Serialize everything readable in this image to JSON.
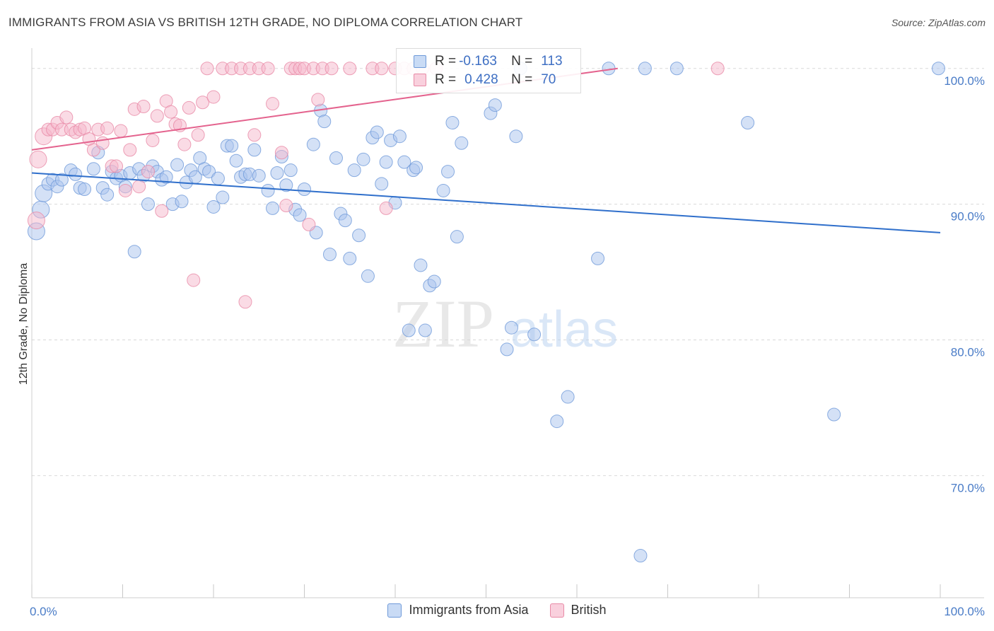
{
  "header": {
    "title": "IMMIGRANTS FROM ASIA VS BRITISH 12TH GRADE, NO DIPLOMA CORRELATION CHART",
    "source": "Source: ZipAtlas.com"
  },
  "watermark": {
    "zip": "ZIP",
    "atlas": "atlas"
  },
  "legend": {
    "r_label": "R =",
    "n_label": "N =",
    "rows": [
      {
        "series": "Immigrants from Asia",
        "r": "-0.163",
        "n": "113",
        "color": "#a9c4ee",
        "edge": "#6f9ad9"
      },
      {
        "series": "British",
        "r": "0.428",
        "n": "70",
        "color": "#f5b8cb",
        "edge": "#e88aa6"
      }
    ]
  },
  "bottom_legend": [
    {
      "label": "Immigrants from Asia",
      "color": "#a9c4ee",
      "edge": "#6f9ad9"
    },
    {
      "label": "British",
      "color": "#f5b8cb",
      "edge": "#e88aa6"
    }
  ],
  "chart_data": {
    "type": "scatter",
    "ylabel": "12th Grade, No Diploma",
    "xlabel": "",
    "xlim": [
      0,
      100
    ],
    "ylim": [
      61,
      101.5
    ],
    "x_tick_labels": [
      "0.0%",
      "100.0%"
    ],
    "y_ticks": [
      {
        "value": 100,
        "label": "100.0%"
      },
      {
        "value": 90,
        "label": "90.0%"
      },
      {
        "value": 80,
        "label": "80.0%"
      },
      {
        "value": 70,
        "label": "70.0%"
      }
    ],
    "grid": true,
    "series": [
      {
        "name": "Immigrants from Asia",
        "color": "#6f9ad9",
        "fill": "#a9c4ee",
        "trend": {
          "x": [
            0,
            100
          ],
          "y": [
            92.3,
            87.9
          ],
          "color": "#2f6fcb"
        },
        "points": [
          [
            0.5,
            88
          ],
          [
            1.0,
            89.6
          ],
          [
            1.3,
            90.8
          ],
          [
            1.8,
            91.5
          ],
          [
            2.3,
            91.8
          ],
          [
            2.8,
            91.3
          ],
          [
            3.3,
            91.8
          ],
          [
            4.3,
            92.5
          ],
          [
            4.8,
            92.2
          ],
          [
            5.3,
            91.2
          ],
          [
            5.8,
            91.1
          ],
          [
            6.8,
            92.6
          ],
          [
            7.3,
            93.8
          ],
          [
            7.8,
            91.2
          ],
          [
            8.3,
            90.7
          ],
          [
            8.8,
            92.4
          ],
          [
            9.3,
            91.9
          ],
          [
            9.8,
            92.1
          ],
          [
            10.3,
            91.3
          ],
          [
            10.8,
            92.3
          ],
          [
            11.3,
            86.5
          ],
          [
            11.8,
            92.6
          ],
          [
            12.3,
            92.1
          ],
          [
            12.8,
            90
          ],
          [
            13.3,
            92.8
          ],
          [
            13.8,
            92.4
          ],
          [
            14.3,
            91.8
          ],
          [
            14.8,
            92
          ],
          [
            15.5,
            90
          ],
          [
            16.0,
            92.9
          ],
          [
            16.5,
            90.2
          ],
          [
            17.0,
            91.6
          ],
          [
            17.5,
            92.5
          ],
          [
            18.0,
            92
          ],
          [
            18.5,
            93.4
          ],
          [
            19.0,
            92.6
          ],
          [
            19.5,
            92.4
          ],
          [
            20.0,
            89.8
          ],
          [
            20.5,
            91.9
          ],
          [
            21.0,
            90.5
          ],
          [
            21.5,
            94.3
          ],
          [
            22.0,
            94.3
          ],
          [
            22.5,
            93.2
          ],
          [
            23.0,
            92
          ],
          [
            23.5,
            92.2
          ],
          [
            24.0,
            92.2
          ],
          [
            24.5,
            94
          ],
          [
            25.0,
            92.1
          ],
          [
            26.0,
            91
          ],
          [
            26.5,
            89.7
          ],
          [
            27.0,
            92.3
          ],
          [
            27.5,
            93.5
          ],
          [
            28.0,
            91.4
          ],
          [
            28.5,
            92.5
          ],
          [
            29.0,
            89.6
          ],
          [
            29.5,
            89.2
          ],
          [
            30.0,
            91.1
          ],
          [
            31.0,
            94.4
          ],
          [
            31.3,
            87.9
          ],
          [
            31.8,
            96.9
          ],
          [
            32.2,
            96.1
          ],
          [
            32.8,
            86.3
          ],
          [
            33.5,
            93.4
          ],
          [
            34.0,
            89.3
          ],
          [
            34.5,
            88.8
          ],
          [
            35.0,
            86
          ],
          [
            35.5,
            92.5
          ],
          [
            36.0,
            87.7
          ],
          [
            36.5,
            93.3
          ],
          [
            37.0,
            84.7
          ],
          [
            37.5,
            94.9
          ],
          [
            38.0,
            95.3
          ],
          [
            38.5,
            91.5
          ],
          [
            39.0,
            93.1
          ],
          [
            39.5,
            94.7
          ],
          [
            40.0,
            90.1
          ],
          [
            40.5,
            95
          ],
          [
            41.0,
            93.1
          ],
          [
            41.5,
            80.7
          ],
          [
            42.0,
            92.5
          ],
          [
            42.3,
            92.7
          ],
          [
            42.8,
            85.5
          ],
          [
            43.3,
            80.7
          ],
          [
            43.8,
            84
          ],
          [
            44.3,
            84.3
          ],
          [
            45.3,
            91
          ],
          [
            45.8,
            92.4
          ],
          [
            46.3,
            96
          ],
          [
            46.8,
            87.6
          ],
          [
            47.3,
            94.5
          ],
          [
            50.5,
            96.7
          ],
          [
            51.0,
            97.3
          ],
          [
            52.3,
            79.3
          ],
          [
            52.8,
            80.9
          ],
          [
            53.3,
            95
          ],
          [
            53.8,
            100
          ],
          [
            55.3,
            80.4
          ],
          [
            57.8,
            74
          ],
          [
            59.0,
            75.8
          ],
          [
            62.3,
            86
          ],
          [
            63.5,
            100
          ],
          [
            67.0,
            64.1
          ],
          [
            67.5,
            100
          ],
          [
            71.0,
            100
          ],
          [
            78.8,
            96
          ],
          [
            88.3,
            74.5
          ],
          [
            99.8,
            100
          ]
        ]
      },
      {
        "name": "British",
        "color": "#e88aa6",
        "fill": "#f5b8cb",
        "trend": {
          "x": [
            0,
            64.5
          ],
          "y": [
            94.0,
            100
          ],
          "color": "#e4638e"
        },
        "points": [
          [
            0.5,
            88.8
          ],
          [
            0.7,
            93.3
          ],
          [
            1.3,
            95
          ],
          [
            1.8,
            95.5
          ],
          [
            2.3,
            95.5
          ],
          [
            2.8,
            96
          ],
          [
            3.3,
            95.5
          ],
          [
            3.8,
            96.4
          ],
          [
            4.3,
            95.5
          ],
          [
            4.8,
            95.3
          ],
          [
            5.3,
            95.5
          ],
          [
            5.8,
            95.6
          ],
          [
            6.3,
            94.8
          ],
          [
            6.8,
            94
          ],
          [
            7.3,
            95.5
          ],
          [
            7.8,
            94.5
          ],
          [
            8.3,
            95.6
          ],
          [
            8.8,
            92.8
          ],
          [
            9.3,
            92.8
          ],
          [
            9.8,
            95.4
          ],
          [
            10.3,
            91
          ],
          [
            10.8,
            94
          ],
          [
            11.3,
            97
          ],
          [
            11.8,
            91.3
          ],
          [
            12.3,
            97.2
          ],
          [
            12.8,
            92.4
          ],
          [
            13.3,
            94.7
          ],
          [
            13.8,
            96.5
          ],
          [
            14.3,
            89.5
          ],
          [
            14.8,
            97.6
          ],
          [
            15.3,
            96.8
          ],
          [
            15.8,
            95.9
          ],
          [
            16.3,
            95.8
          ],
          [
            16.8,
            94.4
          ],
          [
            17.3,
            97.1
          ],
          [
            17.8,
            84.4
          ],
          [
            18.3,
            95.1
          ],
          [
            18.8,
            97.5
          ],
          [
            19.3,
            100
          ],
          [
            20.0,
            97.9
          ],
          [
            21.0,
            100
          ],
          [
            22.0,
            100
          ],
          [
            23.0,
            100
          ],
          [
            23.5,
            82.8
          ],
          [
            24.0,
            100
          ],
          [
            24.5,
            95.1
          ],
          [
            25.0,
            100
          ],
          [
            26.0,
            100
          ],
          [
            26.5,
            97.4
          ],
          [
            27.5,
            93.8
          ],
          [
            28.0,
            89.9
          ],
          [
            28.5,
            100
          ],
          [
            29.0,
            100
          ],
          [
            29.5,
            100
          ],
          [
            30.0,
            100
          ],
          [
            30.5,
            88.5
          ],
          [
            31.0,
            100
          ],
          [
            31.5,
            97.7
          ],
          [
            32.0,
            100
          ],
          [
            33.0,
            100
          ],
          [
            35.0,
            100
          ],
          [
            37.5,
            100
          ],
          [
            38.5,
            100
          ],
          [
            39.0,
            89.7
          ],
          [
            40.0,
            100
          ],
          [
            41.0,
            100
          ],
          [
            42.0,
            100
          ],
          [
            43.0,
            100
          ],
          [
            44.5,
            100
          ],
          [
            75.5,
            100
          ]
        ]
      }
    ]
  }
}
